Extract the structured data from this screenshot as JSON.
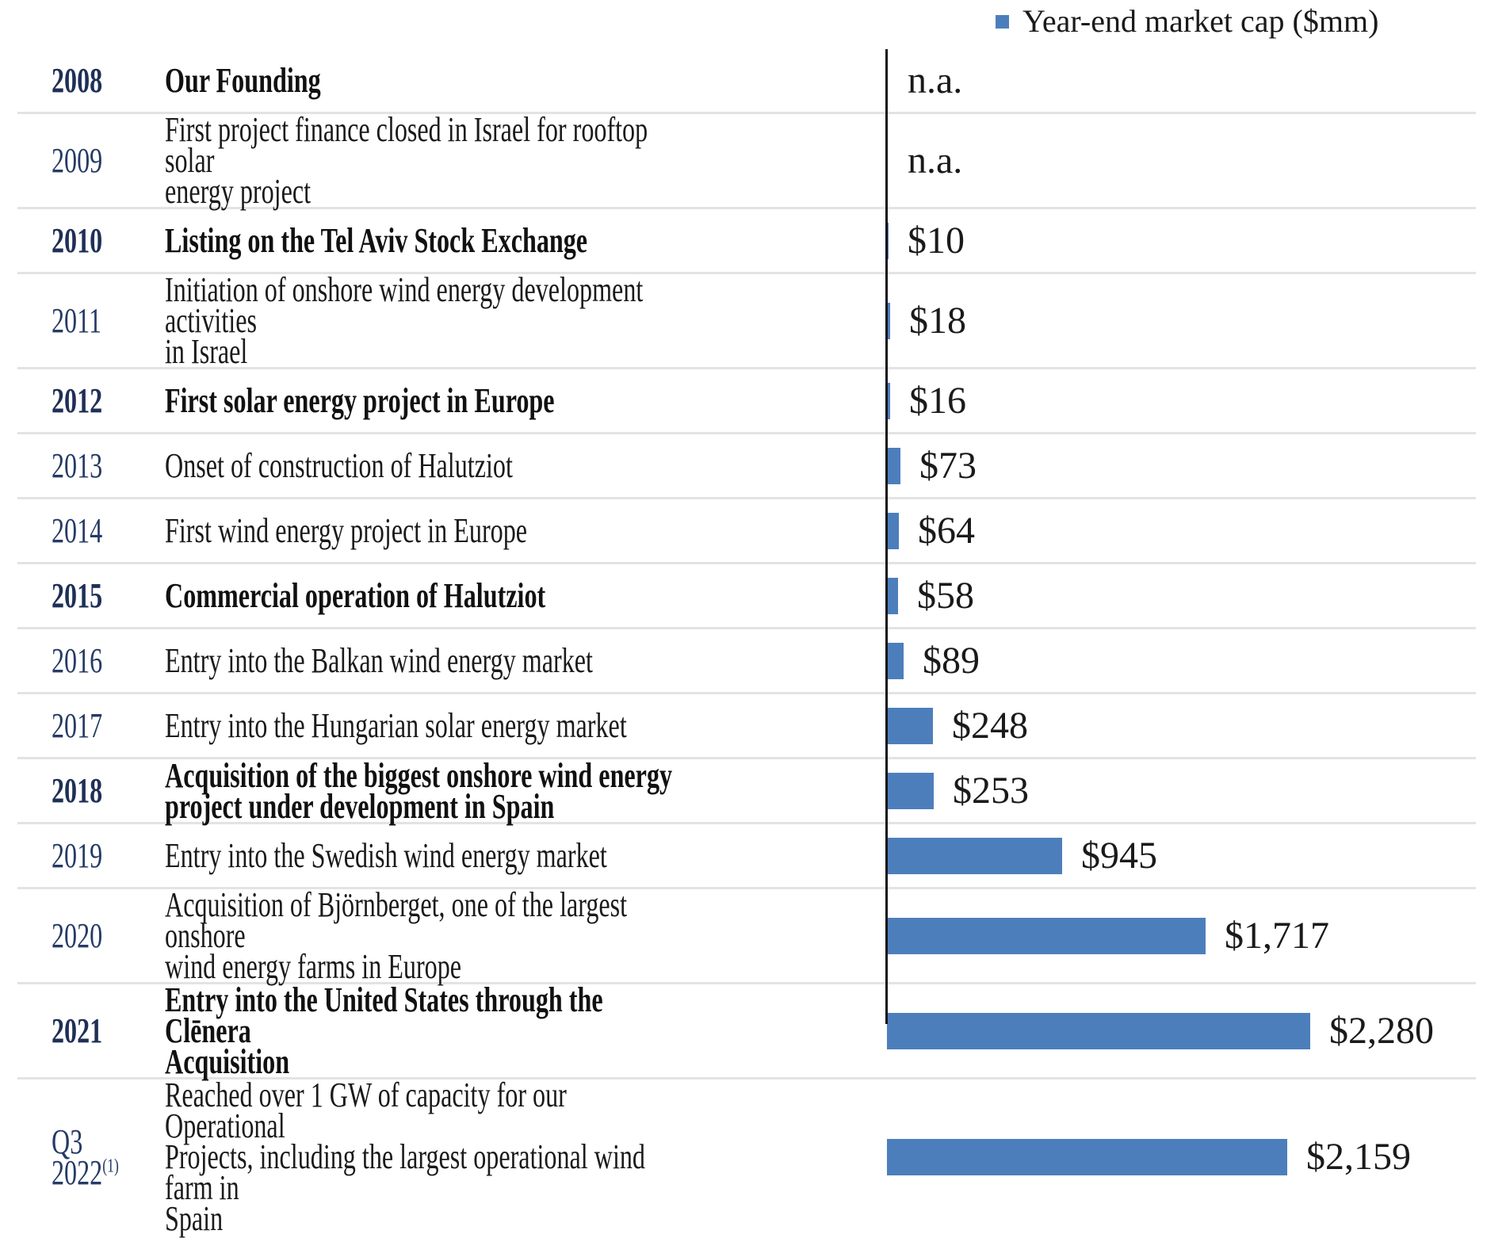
{
  "legend": {
    "label": "Year-end market cap ($mm)",
    "marker_color": "#4d7ebc"
  },
  "colors": {
    "bar": "#4d7ebc",
    "year_text": "#253a66",
    "body_text": "#1a1a1a",
    "axis": "#131313",
    "divider": "#e3e3e3"
  },
  "chart_data": {
    "type": "bar",
    "orientation": "horizontal",
    "title": "",
    "legend_entries": [
      "Year-end market cap ($mm)"
    ],
    "legend_position": "top-right",
    "unit": "$mm",
    "categories": [
      "2008",
      "2009",
      "2010",
      "2011",
      "2012",
      "2013",
      "2014",
      "2015",
      "2016",
      "2017",
      "2018",
      "2019",
      "2020",
      "2021",
      "Q3 2022"
    ],
    "values": [
      null,
      null,
      10,
      18,
      16,
      73,
      64,
      58,
      89,
      248,
      253,
      945,
      1717,
      2280,
      2159
    ],
    "value_labels": [
      "n.a.",
      "n.a.",
      "$10",
      "$18",
      "$16",
      "$73",
      "$64",
      "$58",
      "$89",
      "$248",
      "$253",
      "$945",
      "$1,717",
      "$2,280",
      "$2,159"
    ],
    "xlim": [
      0,
      2400
    ],
    "grid": "horizontal-row-dividers",
    "baseline_axis": "vertical-left"
  },
  "rows": [
    {
      "year": "2008",
      "year_sup": "",
      "milestone": "Our Founding",
      "bold": true,
      "value": null,
      "value_label": "n.a."
    },
    {
      "year": "2009",
      "year_sup": "",
      "milestone": "First project finance closed in Israel for rooftop solar\nenergy project",
      "bold": false,
      "value": null,
      "value_label": "n.a."
    },
    {
      "year": "2010",
      "year_sup": "",
      "milestone": "Listing on the Tel Aviv Stock Exchange",
      "bold": true,
      "value": 10,
      "value_label": "$10"
    },
    {
      "year": "2011",
      "year_sup": "",
      "milestone": "Initiation of onshore wind energy development activities\nin Israel",
      "bold": false,
      "value": 18,
      "value_label": "$18"
    },
    {
      "year": "2012",
      "year_sup": "",
      "milestone": "First solar energy project in Europe",
      "bold": true,
      "value": 16,
      "value_label": "$16"
    },
    {
      "year": "2013",
      "year_sup": "",
      "milestone": "Onset of construction of Halutziot",
      "bold": false,
      "value": 73,
      "value_label": "$73"
    },
    {
      "year": "2014",
      "year_sup": "",
      "milestone": "First wind energy project in Europe",
      "bold": false,
      "value": 64,
      "value_label": "$64"
    },
    {
      "year": "2015",
      "year_sup": "",
      "milestone": "Commercial operation of Halutziot",
      "bold": true,
      "value": 58,
      "value_label": "$58"
    },
    {
      "year": "2016",
      "year_sup": "",
      "milestone": "Entry into the Balkan wind energy market",
      "bold": false,
      "value": 89,
      "value_label": "$89"
    },
    {
      "year": "2017",
      "year_sup": "",
      "milestone": "Entry into the Hungarian solar energy market",
      "bold": false,
      "value": 248,
      "value_label": "$248"
    },
    {
      "year": "2018",
      "year_sup": "",
      "milestone": "Acquisition of the biggest onshore wind energy\nproject under development in Spain",
      "bold": true,
      "value": 253,
      "value_label": "$253"
    },
    {
      "year": "2019",
      "year_sup": "",
      "milestone": "Entry into the Swedish wind energy market",
      "bold": false,
      "value": 945,
      "value_label": "$945"
    },
    {
      "year": "2020",
      "year_sup": "",
      "milestone": "Acquisition of Björnberget, one of the largest onshore\nwind energy farms in Europe",
      "bold": false,
      "value": 1717,
      "value_label": "$1,717"
    },
    {
      "year": "2021",
      "year_sup": "",
      "milestone": "Entry into the United States through the Clēnera\nAcquisition",
      "bold": true,
      "value": 2280,
      "value_label": "$2,280"
    },
    {
      "year": "Q3\n2022",
      "year_sup": "(1)",
      "milestone": "Reached over 1 GW of capacity for our Operational\nProjects, including the largest operational wind farm in\nSpain",
      "bold": false,
      "value": 2159,
      "value_label": "$2,159"
    }
  ]
}
